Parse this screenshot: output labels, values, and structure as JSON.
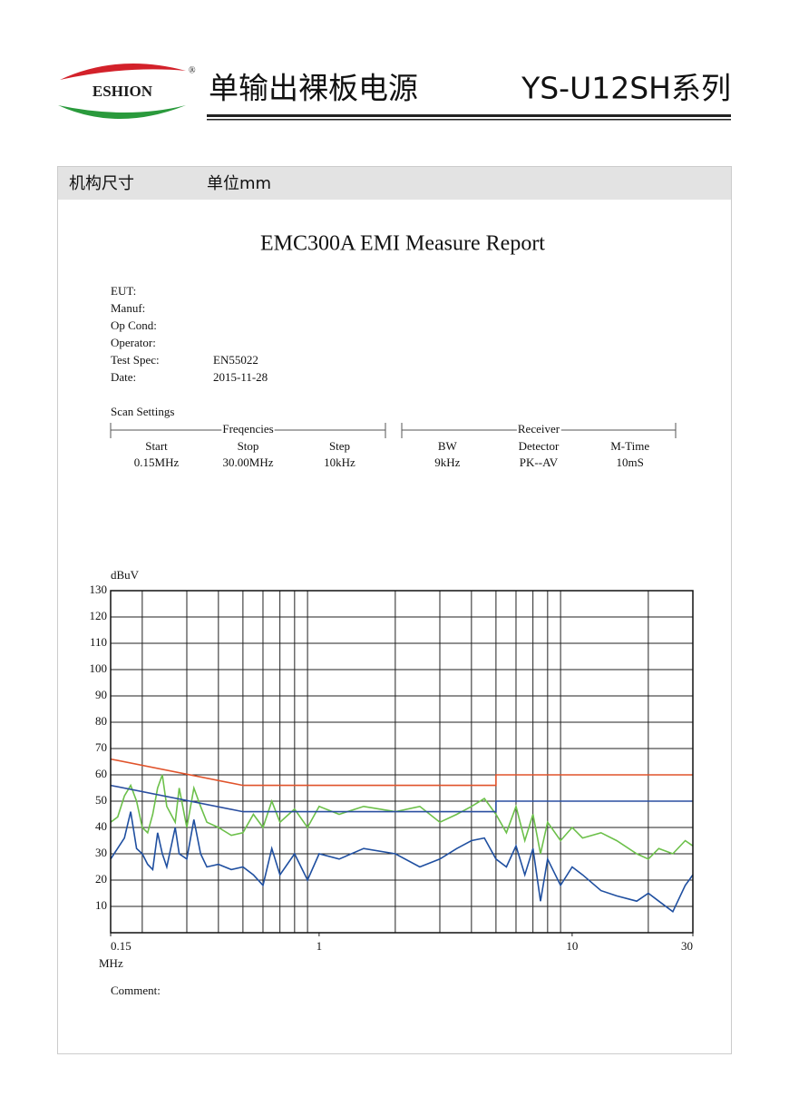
{
  "header": {
    "logo": "ESHION",
    "logo_mark": "®",
    "title": "单输出裸板电源",
    "series": "YS-U12SH系列"
  },
  "section": {
    "label": "机构尺寸",
    "unit": "单位mm"
  },
  "report": {
    "title": "EMC300A EMI Measure Report",
    "fields": [
      {
        "label": "EUT:"
      },
      {
        "label": "Manuf:"
      },
      {
        "label": "Op Cond:"
      },
      {
        "label": "Operator:"
      },
      {
        "label": "Test Spec:",
        "value": "EN55022"
      },
      {
        "label": "Date:",
        "value": "2015-11-28"
      }
    ],
    "scan_title": "Scan Settings",
    "groups": [
      {
        "name": "Freqencies",
        "columns": [
          {
            "head": "Start",
            "value": "0.15MHz"
          },
          {
            "head": "Stop",
            "value": "30.00MHz"
          },
          {
            "head": "Step",
            "value": "10kHz"
          }
        ]
      },
      {
        "name": "Receiver",
        "columns": [
          {
            "head": "BW",
            "value": "9kHz"
          },
          {
            "head": "Detector",
            "value": "PK--AV"
          },
          {
            "head": "M-Time",
            "value": "10mS"
          }
        ]
      }
    ],
    "comment": "Comment:"
  },
  "chart_data": {
    "type": "line",
    "y_label": "dBuV",
    "x_label": "MHz",
    "xscale": "log",
    "xlim": [
      0.15,
      30
    ],
    "ylim": [
      0,
      130
    ],
    "xticks": [
      0.15,
      1,
      10,
      30
    ],
    "x_minor_ticks": [
      0.2,
      0.3,
      0.4,
      0.5,
      0.6,
      0.7,
      0.8,
      0.9,
      2,
      3,
      4,
      5,
      6,
      7,
      8,
      9,
      20
    ],
    "yticks": [
      10,
      20,
      30,
      40,
      50,
      60,
      70,
      80,
      90,
      100,
      110,
      120,
      130
    ],
    "grid": true,
    "series": [
      {
        "color": "#e0532b",
        "x": [
          0.15,
          0.5,
          5,
          5,
          30
        ],
        "values": [
          66,
          56,
          56,
          60,
          60
        ]
      },
      {
        "color": "#2a4ea0",
        "x": [
          0.15,
          0.5,
          5,
          5,
          30
        ],
        "values": [
          56,
          46,
          46,
          50,
          50
        ]
      },
      {
        "color": "#6cc04a",
        "x": [
          0.15,
          0.16,
          0.17,
          0.18,
          0.19,
          0.2,
          0.21,
          0.22,
          0.23,
          0.24,
          0.25,
          0.27,
          0.28,
          0.3,
          0.32,
          0.34,
          0.36,
          0.4,
          0.45,
          0.5,
          0.55,
          0.6,
          0.65,
          0.7,
          0.8,
          0.9,
          1,
          1.2,
          1.5,
          2,
          2.5,
          3,
          3.5,
          4,
          4.5,
          5,
          5.5,
          6,
          6.5,
          7,
          7.5,
          8,
          9,
          10,
          11,
          13,
          15,
          18,
          20,
          22,
          25,
          28,
          30
        ],
        "values": [
          42,
          44,
          52,
          56,
          50,
          40,
          38,
          45,
          55,
          60,
          48,
          42,
          55,
          40,
          55,
          48,
          42,
          40,
          37,
          38,
          45,
          40,
          50,
          42,
          47,
          40,
          48,
          45,
          48,
          46,
          48,
          42,
          45,
          48,
          51,
          45,
          38,
          48,
          35,
          45,
          30,
          42,
          35,
          40,
          36,
          38,
          35,
          30,
          28,
          32,
          30,
          35,
          33
        ]
      },
      {
        "color": "#1f4fa0",
        "x": [
          0.15,
          0.17,
          0.18,
          0.19,
          0.2,
          0.21,
          0.22,
          0.23,
          0.24,
          0.25,
          0.27,
          0.28,
          0.3,
          0.32,
          0.34,
          0.36,
          0.4,
          0.45,
          0.5,
          0.55,
          0.6,
          0.65,
          0.7,
          0.8,
          0.9,
          1,
          1.2,
          1.5,
          2,
          2.5,
          3,
          3.5,
          4,
          4.5,
          5,
          5.5,
          6,
          6.5,
          7,
          7.5,
          8,
          9,
          10,
          11,
          13,
          15,
          18,
          20,
          22,
          25,
          28,
          30
        ],
        "values": [
          28,
          36,
          46,
          32,
          30,
          26,
          24,
          38,
          30,
          25,
          40,
          30,
          28,
          43,
          30,
          25,
          26,
          24,
          25,
          22,
          18,
          32,
          22,
          30,
          20,
          30,
          28,
          32,
          30,
          25,
          28,
          32,
          35,
          36,
          28,
          25,
          33,
          22,
          32,
          12,
          28,
          18,
          25,
          22,
          16,
          14,
          12,
          15,
          12,
          8,
          18,
          22
        ]
      }
    ]
  }
}
